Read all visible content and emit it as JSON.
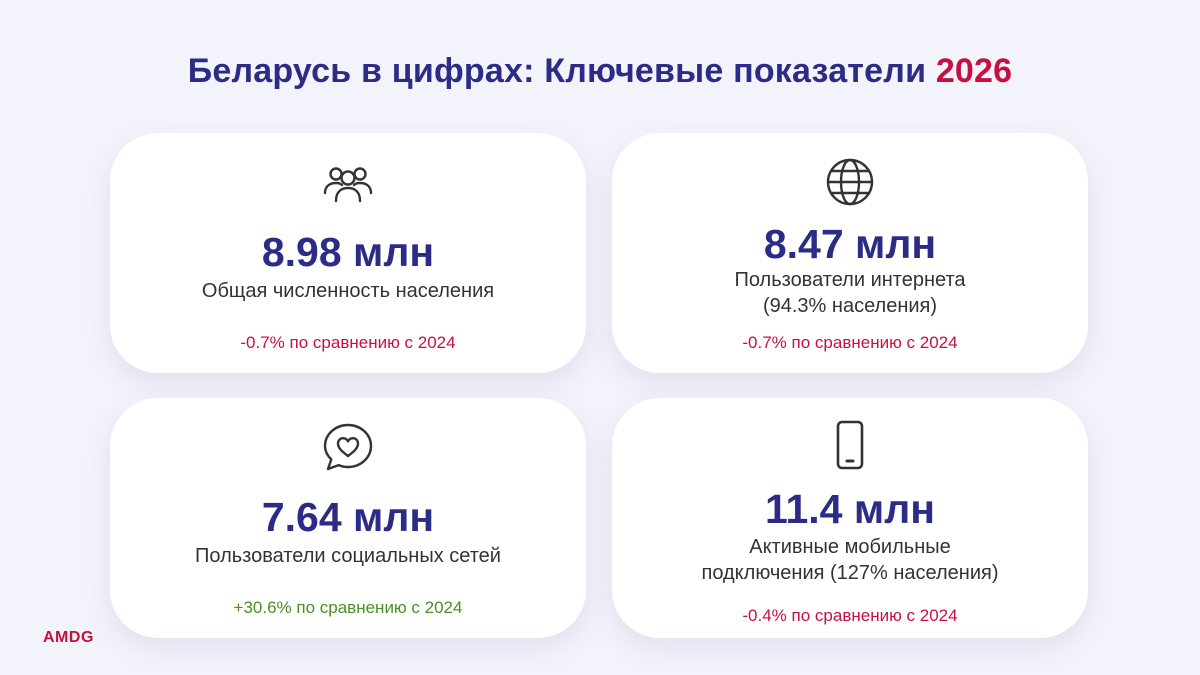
{
  "title": {
    "main": "Беларусь в цифрах: Ключевые показатели ",
    "year": "2026"
  },
  "colors": {
    "title": "#2c2c86",
    "accent": "#c8103e",
    "positive": "#4a8f23",
    "background": "#f3f3fb"
  },
  "cards": [
    {
      "icon": "people-icon",
      "value": "8.98 млн",
      "label_line1": "Общая численность населения",
      "label_line2": "",
      "change": "-0.7% по сравнению с 2024"
    },
    {
      "icon": "globe-icon",
      "value": "8.47 млн",
      "label_line1": "Пользователи интернета",
      "label_line2": "(94.3% населения)",
      "change": "-0.7% по сравнению с 2024"
    },
    {
      "icon": "chat-heart-icon",
      "value": "7.64 млн",
      "label_line1": "Пользователи социальных сетей",
      "label_line2": "",
      "change": "+30.6% по сравнению с 2024"
    },
    {
      "icon": "smartphone-icon",
      "value": "11.4 млн",
      "label_line1": "Активные мобильные",
      "label_line2": "подключения (127% населения)",
      "change": "-0.4% по сравнению с 2024"
    }
  ],
  "logo": "AMDG"
}
